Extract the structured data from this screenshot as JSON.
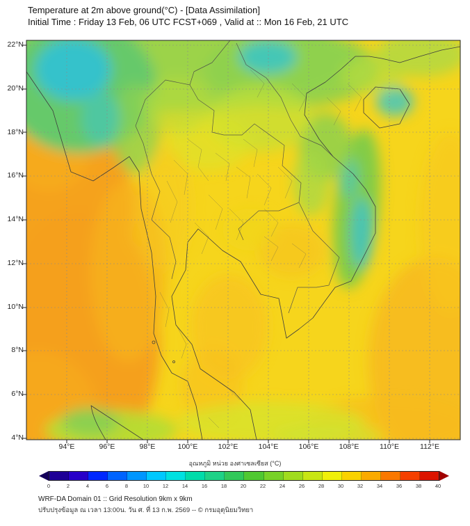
{
  "header": {
    "title": "Temperature at 2m above ground(°C) - [Data Assimilation]",
    "subtitle": "Initial Time : Friday 13 Feb, 06 UTC FCST+069 , Valid at :: Mon 16 Feb, 21 UTC"
  },
  "map": {
    "lat_ticks": [
      "22°N",
      "20°N",
      "18°N",
      "16°N",
      "14°N",
      "12°N",
      "10°N",
      "8°N",
      "6°N",
      "4°N"
    ],
    "lon_ticks": [
      "94°E",
      "96°E",
      "98°E",
      "100°E",
      "102°E",
      "104°E",
      "106°E",
      "108°E",
      "110°E",
      "112°E"
    ]
  },
  "colorbar": {
    "label": "อุณหภูมิ หน่วย องศาเซลเซียส (°C)",
    "ticks": [
      "0",
      "2",
      "4",
      "6",
      "8",
      "10",
      "12",
      "14",
      "16",
      "18",
      "20",
      "22",
      "24",
      "26",
      "28",
      "30",
      "32",
      "34",
      "36",
      "38",
      "40"
    ],
    "segment_colors": [
      "#1e0096",
      "#2800c8",
      "#0028ff",
      "#0064ff",
      "#0096ff",
      "#00c8ff",
      "#00e1e1",
      "#00dcaa",
      "#1ed287",
      "#32c85a",
      "#50c832",
      "#78d228",
      "#a0dc1e",
      "#c8e614",
      "#f0f00a",
      "#fad200",
      "#faaa00",
      "#fa7800",
      "#f54000",
      "#dc1400"
    ],
    "arrow_left_color": "#14005a",
    "arrow_right_color": "#a00000"
  },
  "footer": {
    "line1": "WRF-DA Domain 01 :: Grid Resolution 9km x 9km",
    "line2": "ปรับปรุงข้อมูล ณ เวลา 13:00น. วัน ศ. ที่ 13 ก.พ. 2569 -- © กรมอุตุนิยมวิทยา"
  },
  "chart_data": {
    "type": "heatmap",
    "title": "Temperature at 2m above ground (°C)",
    "units": "°C",
    "value_range": [
      0,
      40
    ],
    "lon_range": [
      92,
      113.5
    ],
    "lat_range": [
      4,
      22.2
    ],
    "legend_position": "bottom",
    "grid": true,
    "summary": "Mostly 26-32°C across the domain; 30-32°C over the Andaman Sea and Bay of Bengal (west); 20-26°C (green/cyan) over northern Thailand, Myanmar and northern Laos highlands; 22-26°C band along the Vietnam coast and central highlands; 24-28°C patches along the southern (equatorial) edge; 28-30°C over central Thailand, Cambodia and the Gulf of Thailand."
  }
}
